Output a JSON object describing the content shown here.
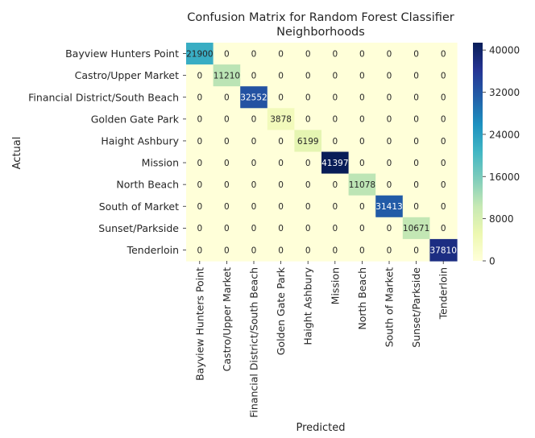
{
  "chart_data": {
    "type": "heatmap",
    "title": "Confusion Matrix for Random Forest Classifier\nNeighborhoods",
    "xlabel": "Predicted",
    "ylabel": "Actual",
    "categories": [
      "Bayview Hunters Point",
      "Castro/Upper Market",
      "Financial District/South Beach",
      "Golden Gate Park",
      "Haight Ashbury",
      "Mission",
      "North Beach",
      "South of Market",
      "Sunset/Parkside",
      "Tenderloin"
    ],
    "values": [
      [
        21900,
        0,
        0,
        0,
        0,
        0,
        0,
        0,
        0,
        0
      ],
      [
        0,
        11210,
        0,
        0,
        0,
        0,
        0,
        0,
        0,
        0
      ],
      [
        0,
        0,
        32552,
        0,
        0,
        0,
        0,
        0,
        0,
        0
      ],
      [
        0,
        0,
        0,
        3878,
        0,
        0,
        0,
        0,
        0,
        0
      ],
      [
        0,
        0,
        0,
        0,
        6199,
        0,
        0,
        0,
        0,
        0
      ],
      [
        0,
        0,
        0,
        0,
        0,
        41397,
        0,
        0,
        0,
        0
      ],
      [
        0,
        0,
        0,
        0,
        0,
        0,
        11078,
        0,
        0,
        0
      ],
      [
        0,
        0,
        0,
        0,
        0,
        0,
        0,
        31413,
        0,
        0
      ],
      [
        0,
        0,
        0,
        0,
        0,
        0,
        0,
        0,
        10671,
        0
      ],
      [
        0,
        0,
        0,
        0,
        0,
        0,
        0,
        0,
        0,
        37810
      ]
    ],
    "colormap": "YlGnBu",
    "colorbar": {
      "range": [
        0,
        41397
      ],
      "ticks": [
        0,
        8000,
        16000,
        24000,
        32000,
        40000
      ]
    },
    "colors": {
      "low": "#ffffd9",
      "mid": "#41b6c4",
      "high": "#081d58",
      "annot_dark": "#262626",
      "annot_light": "#ffffff"
    }
  }
}
